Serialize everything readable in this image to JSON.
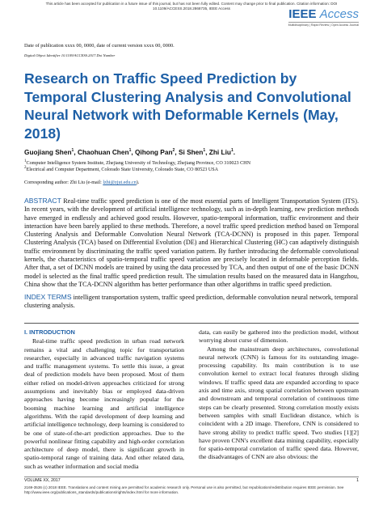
{
  "banner": "This article has been accepted for publication in a future issue of this journal, but has not been fully edited. Content may change prior to final publication. Citation information: DOI 10.1109/ACCESS.2018.2868735, IEEE Access",
  "header": {
    "journal_prefix": "IEEE",
    "journal_name": "Access",
    "tagline": "Multidisciplinary | Rapid Review | Open Access Journal"
  },
  "date_line": "Date of publication xxxx 00, 0000, date of current version xxxx 00, 0000.",
  "doi_line": "Digital Object Identifier 10.1109/ACCESS.2017.Doi Number",
  "title": "Research on Traffic Speed Prediction by Temporal Clustering Analysis and Convolutional Neural Network with Deformable Kernels (May, 2018)",
  "authors": [
    {
      "name": "Guojiang Shen",
      "sup": "1",
      "sep": ","
    },
    {
      "name": "Chaohuan Chen",
      "sup": "1",
      "sep": ","
    },
    {
      "name": "Qihong Pan",
      "sup": "2",
      "sep": ","
    },
    {
      "name": "Si Shen",
      "sup": "1",
      "sep": ","
    },
    {
      "name": "Zhi Liu",
      "sup": "1",
      "sep": "."
    }
  ],
  "affiliations": [
    {
      "sup": "1",
      "text": "Computer Intelligence System Institute, Zhejiang University of Technology, Zhejiang Province, CO 310023 CHN"
    },
    {
      "sup": "2",
      "text": "Electrical and Computer Department, Colorado State University, Colorado State, CO 80523 USA"
    }
  ],
  "corresponding": {
    "prefix": "Corresponding author: Zhi Liu (e-mail: ",
    "email": "lzhi@zjut.edu.cn",
    "suffix": ")."
  },
  "abstract": {
    "label": "ABSTRACT",
    "text": "Real-time traffic speed prediction is one of the most essential parts of Intelligent Transportation System (ITS). In recent years, with the development of artificial intelligence technology, such as in-depth learning, new prediction methods have emerged in endlessly and achieved good results. However, spatio-temporal information, traffic environment and their interaction have been barely applied to these methods. Therefore, a novel traffic speed prediction method based on Temporal Clustering Analysis and Deformable Convolution Neural Network (TCA-DCNN) is proposed in this paper. Temporal Clustering Analysis (TCA) based on Differential Evolution (DE) and Hierarchical Clustering (HC) can adaptively distinguish traffic environment by discriminating the traffic speed variation pattern. By further introducing the deformable convolutional kernels, the characteristics of spatio-temporal traffic speed variation are precisely located in deformable perception fields. After that, a set of DCNN models are trained by using the data processed by TCA, and then output of one of the basic DCNN model is selected as the final traffic speed prediction result. The simulation results based on the measured data in Hangzhou, China show that the TCA-DCNN algorithm has better performance than other algorithms in traffic speed prediction."
  },
  "index_terms": {
    "label": "INDEX TERMS",
    "text": "intelligent transportation system, traffic speed prediction, deformable convolution neural network, temporal clustering analysis."
  },
  "section": {
    "heading": "I. INTRODUCTION",
    "left_paragraphs": [
      "Real-time traffic speed prediction in urban road network remains a vital and challenging topic for transportation researcher, especially in advanced traffic navigation systems and traffic management systems. To settle this issue, a great deal of prediction models have been proposed. Most of them either relied on model-driven approaches criticized for strong assumptions and inevitably bias or employed data-driven approaches having become increasingly popular for the booming machine learning and artificial intelligence algorithms. With the rapid development of deep learning and artificial intelligence technology, deep learning is considered to be one of state-of-the-art prediction approaches. Due to the powerful nonlinear fitting capability and high-order correlation architecture of deep model, there is significant growth in spatio-temporal range of training data. And other related data, such as weather information and social media"
    ],
    "right_paragraphs": [
      "data, can easily be gathered into the prediction model, without worrying about curse of dimension.",
      "Among the mainstream deep architectures, convolutional neural network (CNN) is famous for its outstanding image-processing capability. Its main contribution is to use convolution kernel to extract local features through sliding windows. If traffic speed data are expanded according to space axis and time axis, strong spatial correlation between upstream and downstream and temporal correlation of continuous time steps can be clearly presented. Strong correlation mostly exists between samples with small Euclidean distance, which is coincident with a 2D image. Therefore, CNN is considered to have strong ability to predict traffic speed. Two studies [1][2] have proven CNN's excellent data mining capability, especially for spatio-temporal correlation of traffic speed data. However, the disadvantages of CNN are also obvious: the"
    ]
  },
  "footer": {
    "volume": "VOLUME XX, 2017",
    "page": "1",
    "copyright": "2169-3536 (c) 2018 IEEE. Translations and content mining are permitted for academic research only. Personal use is also permitted, but republication/redistribution requires IEEE permission. See http://www.ieee.org/publications_standards/publications/rights/index.html for more information."
  }
}
